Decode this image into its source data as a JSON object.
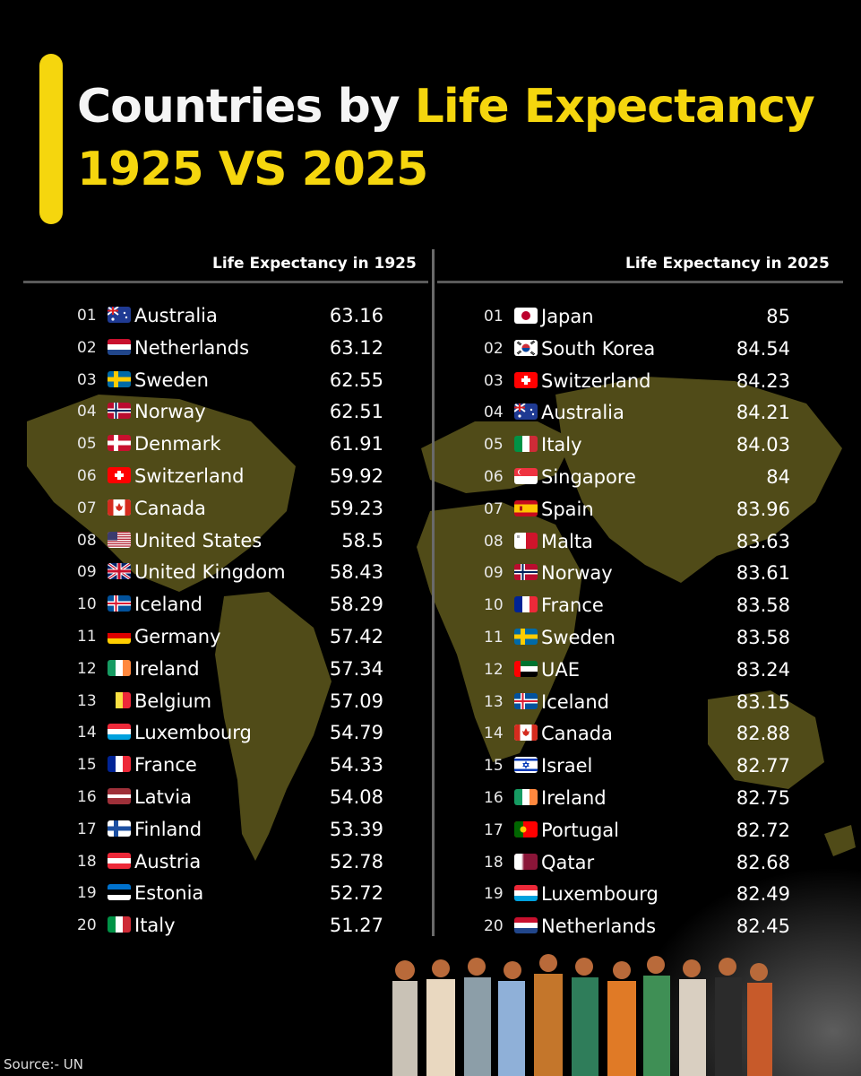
{
  "header": {
    "title_part1": "Countries by ",
    "title_part2": "Life Expectancy",
    "title_line2": "1925 VS 2025",
    "accent_color": "#f5d60e"
  },
  "chart_data": {
    "type": "table",
    "columns": [
      {
        "heading": "Life Expectancy in 1925",
        "rows": [
          {
            "rank": "01",
            "country": "Australia",
            "value": "63.16",
            "flag": "AU"
          },
          {
            "rank": "02",
            "country": "Netherlands",
            "value": "63.12",
            "flag": "NL"
          },
          {
            "rank": "03",
            "country": "Sweden",
            "value": "62.55",
            "flag": "SE"
          },
          {
            "rank": "04",
            "country": "Norway",
            "value": "62.51",
            "flag": "NO"
          },
          {
            "rank": "05",
            "country": "Denmark",
            "value": "61.91",
            "flag": "DK"
          },
          {
            "rank": "06",
            "country": "Switzerland",
            "value": "59.92",
            "flag": "CH"
          },
          {
            "rank": "07",
            "country": "Canada",
            "value": "59.23",
            "flag": "CA"
          },
          {
            "rank": "08",
            "country": "United States",
            "value": "58.5",
            "flag": "US"
          },
          {
            "rank": "09",
            "country": "United Kingdom",
            "value": "58.43",
            "flag": "GB"
          },
          {
            "rank": "10",
            "country": "Iceland",
            "value": "58.29",
            "flag": "IS"
          },
          {
            "rank": "11",
            "country": "Germany",
            "value": "57.42",
            "flag": "DE"
          },
          {
            "rank": "12",
            "country": "Ireland",
            "value": "57.34",
            "flag": "IE"
          },
          {
            "rank": "13",
            "country": "Belgium",
            "value": "57.09",
            "flag": "BE"
          },
          {
            "rank": "14",
            "country": "Luxembourg",
            "value": "54.79",
            "flag": "LU"
          },
          {
            "rank": "15",
            "country": "France",
            "value": "54.33",
            "flag": "FR"
          },
          {
            "rank": "16",
            "country": "Latvia",
            "value": "54.08",
            "flag": "LV"
          },
          {
            "rank": "17",
            "country": "Finland",
            "value": "53.39",
            "flag": "FI"
          },
          {
            "rank": "18",
            "country": "Austria",
            "value": "52.78",
            "flag": "AT"
          },
          {
            "rank": "19",
            "country": "Estonia",
            "value": "52.72",
            "flag": "EE"
          },
          {
            "rank": "20",
            "country": "Italy",
            "value": "51.27",
            "flag": "IT"
          }
        ]
      },
      {
        "heading": "Life Expectancy in 2025",
        "rows": [
          {
            "rank": "01",
            "country": "Japan",
            "value": "85",
            "flag": "JP"
          },
          {
            "rank": "02",
            "country": "South Korea",
            "value": "84.54",
            "flag": "KR"
          },
          {
            "rank": "03",
            "country": "Switzerland",
            "value": "84.23",
            "flag": "CH"
          },
          {
            "rank": "04",
            "country": "Australia",
            "value": "84.21",
            "flag": "AU"
          },
          {
            "rank": "05",
            "country": "Italy",
            "value": "84.03",
            "flag": "IT"
          },
          {
            "rank": "06",
            "country": "Singapore",
            "value": "84",
            "flag": "SG"
          },
          {
            "rank": "07",
            "country": "Spain",
            "value": "83.96",
            "flag": "ES"
          },
          {
            "rank": "08",
            "country": "Malta",
            "value": "83.63",
            "flag": "MT"
          },
          {
            "rank": "09",
            "country": "Norway",
            "value": "83.61",
            "flag": "NO"
          },
          {
            "rank": "10",
            "country": "France",
            "value": "83.58",
            "flag": "FR"
          },
          {
            "rank": "11",
            "country": "Sweden",
            "value": "83.58",
            "flag": "SE"
          },
          {
            "rank": "12",
            "country": "UAE",
            "value": "83.24",
            "flag": "AE"
          },
          {
            "rank": "13",
            "country": "Iceland",
            "value": "83.15",
            "flag": "IS"
          },
          {
            "rank": "14",
            "country": "Canada",
            "value": "82.88",
            "flag": "CA"
          },
          {
            "rank": "15",
            "country": "Israel",
            "value": "82.77",
            "flag": "IL"
          },
          {
            "rank": "16",
            "country": "Ireland",
            "value": "82.75",
            "flag": "IE"
          },
          {
            "rank": "17",
            "country": "Portugal",
            "value": "82.72",
            "flag": "PT"
          },
          {
            "rank": "18",
            "country": "Qatar",
            "value": "82.68",
            "flag": "QA"
          },
          {
            "rank": "19",
            "country": "Luxembourg",
            "value": "82.49",
            "flag": "LU"
          },
          {
            "rank": "20",
            "country": "Netherlands",
            "value": "82.45",
            "flag": "NL"
          }
        ]
      }
    ]
  },
  "footer": {
    "source": "Source:- UN"
  }
}
